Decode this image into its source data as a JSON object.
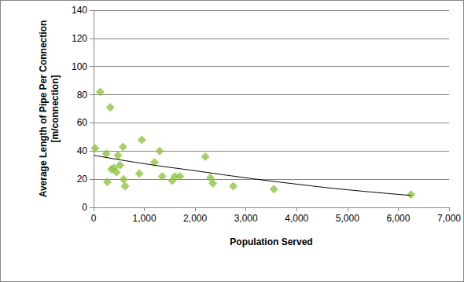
{
  "chart_data": {
    "type": "scatter",
    "x_label": "Population Served",
    "y_label": "Average Length of Pipe Per Connection\n[m/connection]",
    "xlim": [
      0,
      7000
    ],
    "xticks": [
      0,
      1000,
      2000,
      3000,
      4000,
      5000,
      6000,
      7000
    ],
    "ylim": [
      0,
      140
    ],
    "yticks": [
      0,
      20,
      40,
      60,
      80,
      100,
      120,
      140
    ],
    "grid": true,
    "series": [
      {
        "type": "scatter",
        "color": "#8dc63f",
        "marker": "diamond",
        "x": [
          30,
          130,
          250,
          270,
          330,
          350,
          400,
          450,
          480,
          520,
          580,
          590,
          620,
          900,
          950,
          1200,
          1300,
          1350,
          1550,
          1600,
          1700,
          2200,
          2300,
          2350,
          2750,
          3550,
          6250
        ],
        "values": [
          42,
          82,
          38,
          18,
          71,
          27,
          28,
          25,
          37,
          30,
          43,
          20,
          15,
          24,
          48,
          32,
          40,
          22,
          19,
          22,
          22,
          36,
          21,
          17,
          15,
          13,
          9
        ]
      },
      {
        "type": "line",
        "color": "#000000",
        "line_style": "solid",
        "x": [
          0,
          1000,
          2000,
          3000,
          4000,
          5000,
          6250
        ],
        "values": [
          37,
          31,
          26,
          21,
          16.5,
          12.5,
          8.5
        ]
      }
    ]
  }
}
